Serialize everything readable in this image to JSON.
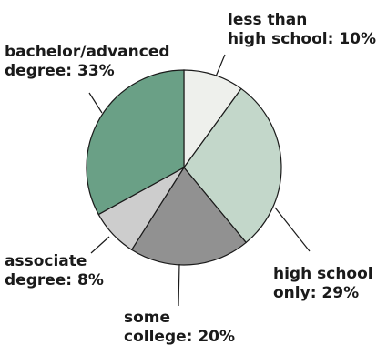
{
  "chart_data": {
    "type": "pie",
    "slices": [
      {
        "label_line1": "less than",
        "label_line2": "high school: 10%",
        "value": 10,
        "color": "#eef0ec"
      },
      {
        "label_line1": "high school",
        "label_line2": "only: 29%",
        "value": 29,
        "color": "#c3d7ca"
      },
      {
        "label_line1": "some",
        "label_line2": "college: 20%",
        "value": 20,
        "color": "#919191"
      },
      {
        "label_line1": "associate",
        "label_line2": "degree: 8%",
        "value": 8,
        "color": "#cdcdcd"
      },
      {
        "label_line1": "bachelor/advanced",
        "label_line2": "degree: 33%",
        "value": 33,
        "color": "#6aa086"
      }
    ]
  }
}
